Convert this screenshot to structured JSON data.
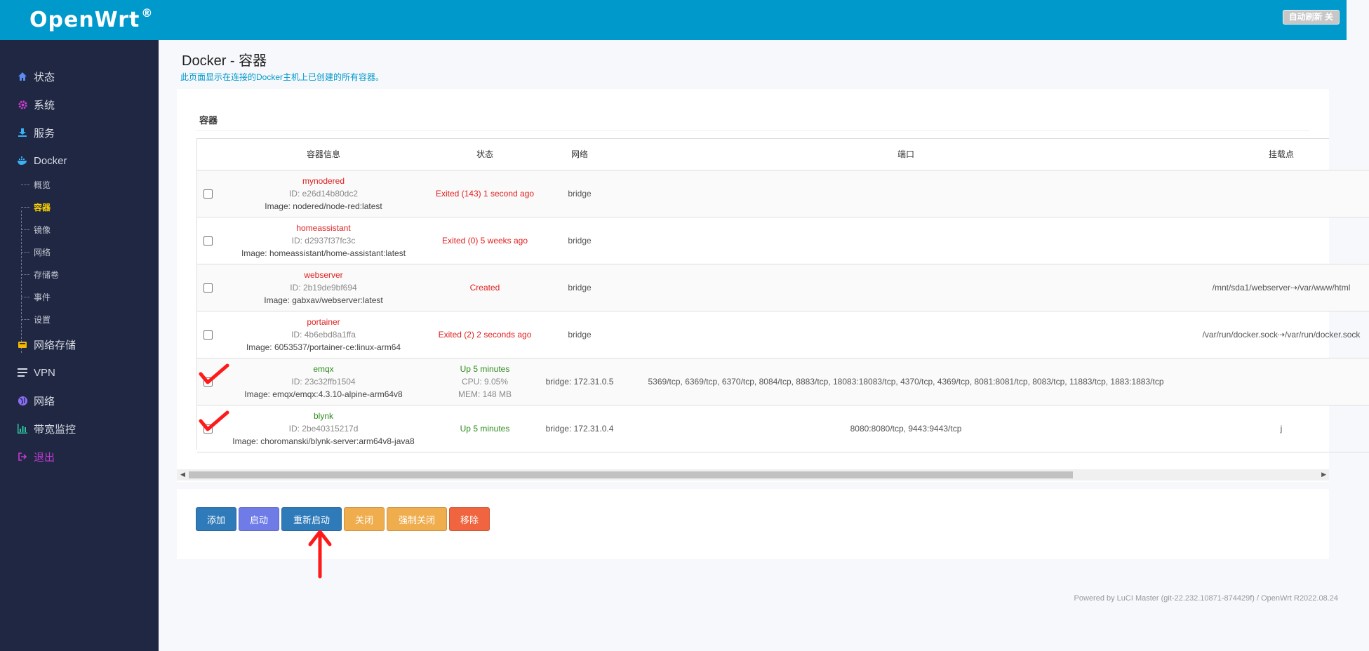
{
  "header": {
    "logo": "OpenWrt",
    "logo_mark": "®",
    "refresh_button": "自动刷新 关"
  },
  "sidebar": {
    "items": [
      {
        "label": "状态",
        "icon": "home-icon",
        "color": "#5b8def"
      },
      {
        "label": "系统",
        "icon": "gear-icon",
        "color": "#d13bd1"
      },
      {
        "label": "服务",
        "icon": "download-icon",
        "color": "#3ab0f5"
      },
      {
        "label": "Docker",
        "icon": "docker-icon",
        "color": "#3ab0f5"
      },
      {
        "label": "网络存储",
        "icon": "storage-icon",
        "color": "#f5b800"
      },
      {
        "label": "VPN",
        "icon": "list-icon",
        "color": "#d8dbe4"
      },
      {
        "label": "网络",
        "icon": "globe-icon",
        "color": "#8b6ef5"
      },
      {
        "label": "带宽监控",
        "icon": "bar-chart-icon",
        "color": "#2ec4a0"
      },
      {
        "label": "退出",
        "icon": "logout-icon",
        "color": "#c13bd1"
      }
    ],
    "docker_sub": [
      "概览",
      "容器",
      "镜像",
      "网络",
      "存储卷",
      "事件",
      "设置"
    ],
    "active_sub": "容器"
  },
  "page": {
    "title": "Docker - 容器",
    "description": "此页面显示在连接的Docker主机上已创建的所有容器。"
  },
  "section": {
    "title": "容器"
  },
  "table": {
    "headers": [
      "容器信息",
      "状态",
      "网络",
      "端口",
      "挂载点"
    ],
    "rows": [
      {
        "name": "mynodered",
        "id": "ID: e26d14b80dc2",
        "image": "Image: nodered/node-red:latest",
        "status": "Exited (143) 1 second ago",
        "status_color": "red",
        "status2": "",
        "status3": "",
        "network": "bridge",
        "ports": "",
        "mounts": "",
        "checked": false
      },
      {
        "name": "homeassistant",
        "id": "ID: d2937f37fc3c",
        "image": "Image: homeassistant/home-assistant:latest",
        "status": "Exited (0) 5 weeks ago",
        "status_color": "red",
        "status2": "",
        "status3": "",
        "network": "bridge",
        "ports": "",
        "mounts": "",
        "checked": false
      },
      {
        "name": "webserver",
        "id": "ID: 2b19de9bf694",
        "image": "Image: gabxav/webserver:latest",
        "status": "Created",
        "status_color": "red",
        "status2": "",
        "status3": "",
        "network": "bridge",
        "ports": "",
        "mounts": "/mnt/sda1/webserver⇢/var/www/html",
        "checked": false
      },
      {
        "name": "portainer",
        "id": "ID: 4b6ebd8a1ffa",
        "image": "Image: 6053537/portainer-ce:linux-arm64",
        "status": "Exited (2) 2 seconds ago",
        "status_color": "red",
        "status2": "",
        "status3": "",
        "network": "bridge",
        "ports": "",
        "mounts": "/var/run/docker.sock⇢/var/run/docker.sock",
        "checked": false
      },
      {
        "name": "emqx",
        "id": "ID: 23c32ffb1504",
        "image": "Image: emqx/emqx:4.3.10-alpine-arm64v8",
        "status": "Up 5 minutes",
        "status_color": "green",
        "status2": "CPU: 9.05%",
        "status3": "MEM: 148 MB",
        "network": "bridge: 172.31.0.5",
        "ports": "5369/tcp, 6369/tcp, 6370/tcp, 8084/tcp, 8883/tcp, 18083:18083/tcp, 4370/tcp, 4369/tcp, 8081:8081/tcp, 8083/tcp, 11883/tcp, 1883:1883/tcp",
        "mounts": "",
        "checked": true
      },
      {
        "name": "blynk",
        "id": "ID: 2be40315217d",
        "image": "Image: choromanski/blynk-server:arm64v8-java8",
        "status": "Up 5 minutes",
        "status_color": "green",
        "status2": "",
        "status3": "",
        "network": "bridge: 172.31.0.4",
        "ports": "8080:8080/tcp, 9443:9443/tcp",
        "mounts": "j",
        "checked": true
      }
    ]
  },
  "buttons": [
    {
      "label": "添加",
      "color": "#2f7ab9"
    },
    {
      "label": "启动",
      "color": "#6f7ce8"
    },
    {
      "label": "重新启动",
      "color": "#2f7ab9"
    },
    {
      "label": "关闭",
      "color": "#f0ad4e"
    },
    {
      "label": "强制关闭",
      "color": "#f0ad4e"
    },
    {
      "label": "移除",
      "color": "#f0653f"
    }
  ],
  "footer": "Powered by LuCI Master (git-22.232.10871-874429f) / OpenWrt R2022.08.24"
}
